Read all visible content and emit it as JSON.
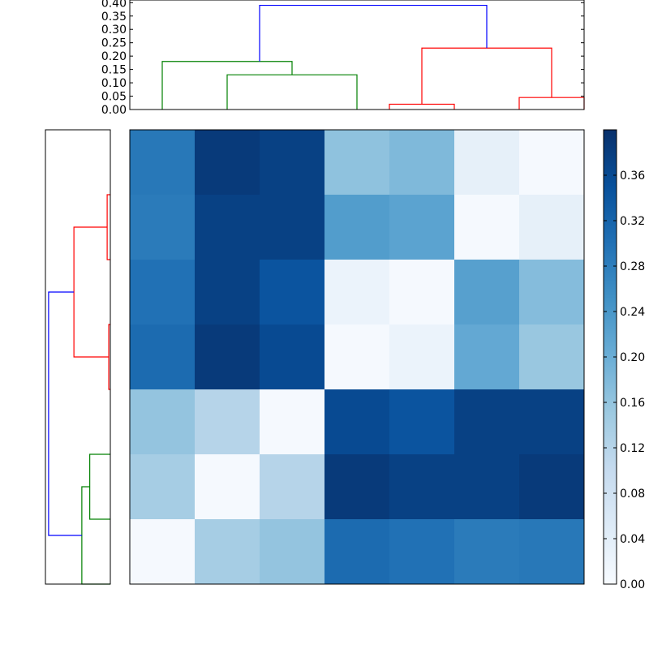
{
  "chart_data": [
    {
      "type": "heatmap",
      "title": "",
      "xlabel": "",
      "ylabel": "",
      "rows": 7,
      "cols": 7,
      "values": [
        [
          0.29,
          0.385,
          0.375,
          0.165,
          0.18,
          0.035,
          0.005
        ],
        [
          0.285,
          0.375,
          0.375,
          0.23,
          0.22,
          0.005,
          0.035
        ],
        [
          0.3,
          0.375,
          0.345,
          0.025,
          0.005,
          0.225,
          0.175
        ],
        [
          0.31,
          0.385,
          0.36,
          0.005,
          0.025,
          0.21,
          0.155
        ],
        [
          0.16,
          0.12,
          0.005,
          0.36,
          0.345,
          0.375,
          0.375
        ],
        [
          0.14,
          0.005,
          0.12,
          0.385,
          0.375,
          0.375,
          0.385
        ],
        [
          0.005,
          0.14,
          0.16,
          0.31,
          0.3,
          0.285,
          0.29
        ]
      ],
      "colorscale": "Blues",
      "colorbar": {
        "range": [
          0.0,
          0.4
        ],
        "ticks": [
          "0.00",
          "0.04",
          "0.08",
          "0.12",
          "0.16",
          "0.20",
          "0.24",
          "0.28",
          "0.32",
          "0.36"
        ]
      }
    },
    {
      "type": "dendrogram",
      "orientation": "top",
      "leaves": 7,
      "yticks": [
        "0.00",
        "0.05",
        "0.10",
        "0.15",
        "0.20",
        "0.25",
        "0.30",
        "0.35",
        "0.40"
      ],
      "ylim": [
        0.0,
        0.41
      ],
      "links": [
        {
          "x": [
            1.0,
            1.0,
            3.0,
            3.0
          ],
          "y": [
            0.0,
            0.13,
            0.13,
            0.0
          ],
          "color": "#008000"
        },
        {
          "x": [
            0.0,
            0.0,
            2.0,
            2.0
          ],
          "y": [
            0.0,
            0.18,
            0.18,
            0.13
          ],
          "color": "#008000"
        },
        {
          "x": [
            3.5,
            3.5,
            4.5,
            4.5
          ],
          "y": [
            0.0,
            0.02,
            0.02,
            0.0
          ],
          "color": "#ff0000"
        },
        {
          "x": [
            5.5,
            5.5,
            6.5,
            6.5
          ],
          "y": [
            0.0,
            0.045,
            0.045,
            0.0
          ],
          "color": "#ff0000"
        },
        {
          "x": [
            4.0,
            4.0,
            6.0,
            6.0
          ],
          "y": [
            0.02,
            0.23,
            0.23,
            0.045
          ],
          "color": "#ff0000"
        },
        {
          "x": [
            1.5,
            1.5,
            5.0,
            5.0
          ],
          "y": [
            0.18,
            0.39,
            0.39,
            0.23
          ],
          "color": "#0000ff"
        }
      ]
    },
    {
      "type": "dendrogram",
      "orientation": "left",
      "leaves": 7,
      "xlim": [
        0.0,
        0.41
      ],
      "links": [
        {
          "y": [
            0.5,
            0.5,
            1.5,
            1.5
          ],
          "v": [
            0.0,
            0.02,
            0.02,
            0.0
          ],
          "color": "#ff0000"
        },
        {
          "y": [
            2.5,
            2.5,
            3.5,
            3.5
          ],
          "v": [
            0.0,
            0.01,
            0.01,
            0.0
          ],
          "color": "#ff0000"
        },
        {
          "y": [
            1.0,
            1.0,
            3.0,
            3.0
          ],
          "v": [
            0.02,
            0.23,
            0.23,
            0.01
          ],
          "color": "#ff0000"
        },
        {
          "y": [
            4.5,
            4.5,
            5.5,
            5.5
          ],
          "v": [
            0.0,
            0.13,
            0.13,
            0.0
          ],
          "color": "#008000"
        },
        {
          "y": [
            5.0,
            5.0,
            6.5,
            6.5
          ],
          "v": [
            0.13,
            0.18,
            0.18,
            0.0
          ],
          "color": "#008000"
        },
        {
          "y": [
            2.0,
            2.0,
            5.75,
            5.75
          ],
          "v": [
            0.23,
            0.39,
            0.39,
            0.18
          ],
          "color": "#0000ff"
        }
      ]
    }
  ]
}
